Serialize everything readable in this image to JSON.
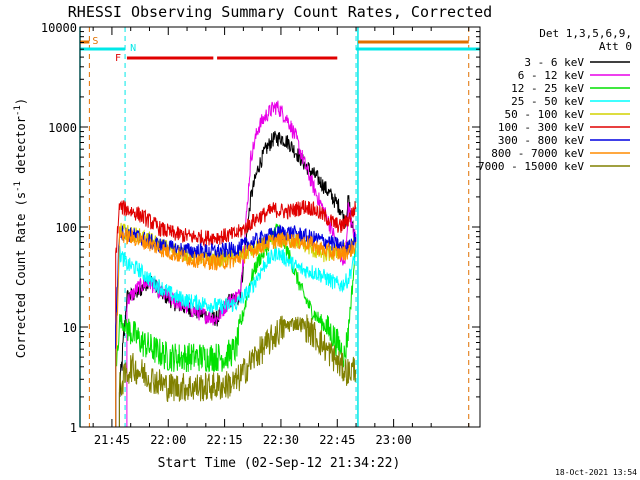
{
  "chart_data": {
    "type": "line",
    "title": "RHESSI Observing Summary Count Rates, Corrected",
    "xlabel": "Start Time (02-Sep-12 21:34:22)",
    "ylabel": "Corrected Count Rate (s⁻¹ detector⁻¹)",
    "ylabel_parts": {
      "main": "Corrected Count Rate (s",
      "exp1": "-1",
      "mid": " detector",
      "exp2": "-1",
      "close": ")"
    },
    "yscale": "log",
    "ylim": [
      1,
      10000
    ],
    "xlim_minutes": [
      36.5,
      143
    ],
    "x_ticks": [
      {
        "label": "21:45",
        "minutes": 45
      },
      {
        "label": "22:00",
        "minutes": 60
      },
      {
        "label": "22:15",
        "minutes": 75
      },
      {
        "label": "22:30",
        "minutes": 90
      },
      {
        "label": "22:45",
        "minutes": 105
      },
      {
        "label": "23:00",
        "minutes": 120
      }
    ],
    "y_ticks": [
      {
        "label": "1",
        "value": 1
      },
      {
        "label": "10",
        "value": 10
      },
      {
        "label": "100",
        "value": 100
      },
      {
        "label": "1000",
        "value": 1000
      },
      {
        "label": "10000",
        "value": 10000
      }
    ],
    "legend": {
      "placement": "right",
      "header": [
        "Det 1,3,5,6,9,",
        "Att 0"
      ]
    },
    "series": [
      {
        "name": "3 - 6 keV",
        "color": "#000000",
        "points": [
          [
            47,
            2
          ],
          [
            49,
            20
          ],
          [
            52,
            22
          ],
          [
            55,
            30
          ],
          [
            58,
            22
          ],
          [
            62,
            17
          ],
          [
            66,
            15
          ],
          [
            70,
            13
          ],
          [
            73,
            12
          ],
          [
            76,
            18
          ],
          [
            79,
            20
          ],
          [
            80,
            40
          ],
          [
            82,
            200
          ],
          [
            84,
            400
          ],
          [
            86,
            600
          ],
          [
            88,
            760
          ],
          [
            90,
            780
          ],
          [
            92,
            700
          ],
          [
            94,
            560
          ],
          [
            96,
            440
          ],
          [
            98,
            360
          ],
          [
            100,
            300
          ],
          [
            102,
            240
          ],
          [
            104,
            190
          ],
          [
            106,
            150
          ],
          [
            107,
            110
          ],
          [
            108,
            190
          ],
          [
            109,
            100
          ],
          [
            110,
            80
          ]
        ]
      },
      {
        "name": "6 - 12 keV",
        "color": "#e800e8",
        "points": [
          [
            49,
            18
          ],
          [
            52,
            25
          ],
          [
            55,
            28
          ],
          [
            58,
            22
          ],
          [
            62,
            18
          ],
          [
            66,
            15
          ],
          [
            70,
            13
          ],
          [
            73,
            12
          ],
          [
            76,
            18
          ],
          [
            79,
            21
          ],
          [
            80,
            50
          ],
          [
            82,
            500
          ],
          [
            84,
            1000
          ],
          [
            86,
            1300
          ],
          [
            88,
            1550
          ],
          [
            89,
            1600
          ],
          [
            90,
            1450
          ],
          [
            92,
            1150
          ],
          [
            94,
            780
          ],
          [
            96,
            460
          ],
          [
            98,
            290
          ],
          [
            100,
            190
          ],
          [
            102,
            130
          ],
          [
            104,
            85
          ],
          [
            106,
            48
          ],
          [
            107,
            40
          ],
          [
            108,
            170
          ],
          [
            109,
            95
          ],
          [
            110,
            75
          ]
        ]
      },
      {
        "name": "12 - 25 keV",
        "color": "#00e000",
        "points": [
          [
            46,
            3
          ],
          [
            47,
            12
          ],
          [
            50,
            9
          ],
          [
            53,
            7
          ],
          [
            56,
            6
          ],
          [
            60,
            5
          ],
          [
            65,
            5
          ],
          [
            70,
            5
          ],
          [
            75,
            5
          ],
          [
            78,
            6
          ],
          [
            80,
            14
          ],
          [
            82,
            30
          ],
          [
            84,
            46
          ],
          [
            86,
            60
          ],
          [
            88,
            85
          ],
          [
            89,
            100
          ],
          [
            90,
            84
          ],
          [
            92,
            54
          ],
          [
            94,
            33
          ],
          [
            96,
            21
          ],
          [
            98,
            15
          ],
          [
            100,
            12
          ],
          [
            102,
            10
          ],
          [
            104,
            8
          ],
          [
            106,
            6
          ],
          [
            107,
            5
          ],
          [
            108,
            10
          ],
          [
            109,
            25
          ],
          [
            110,
            70
          ]
        ]
      },
      {
        "name": "25 - 50 keV",
        "color": "#00ffff",
        "points": [
          [
            46,
            8
          ],
          [
            47,
            55
          ],
          [
            49,
            42
          ],
          [
            52,
            38
          ],
          [
            55,
            30
          ],
          [
            58,
            25
          ],
          [
            62,
            20
          ],
          [
            66,
            18
          ],
          [
            70,
            17
          ],
          [
            74,
            16
          ],
          [
            78,
            17
          ],
          [
            80,
            20
          ],
          [
            82,
            24
          ],
          [
            84,
            33
          ],
          [
            86,
            44
          ],
          [
            88,
            52
          ],
          [
            89,
            56
          ],
          [
            90,
            52
          ],
          [
            92,
            46
          ],
          [
            94,
            40
          ],
          [
            96,
            37
          ],
          [
            98,
            36
          ],
          [
            100,
            34
          ],
          [
            102,
            31
          ],
          [
            104,
            28
          ],
          [
            106,
            26
          ],
          [
            108,
            30
          ],
          [
            110,
            55
          ]
        ]
      },
      {
        "name": "50 - 100 keV",
        "color": "#d2d200",
        "points": [
          [
            46,
            5
          ],
          [
            47,
            95
          ],
          [
            49,
            88
          ],
          [
            52,
            82
          ],
          [
            55,
            75
          ],
          [
            58,
            65
          ],
          [
            62,
            58
          ],
          [
            66,
            52
          ],
          [
            70,
            49
          ],
          [
            74,
            48
          ],
          [
            78,
            50
          ],
          [
            80,
            54
          ],
          [
            82,
            57
          ],
          [
            84,
            62
          ],
          [
            86,
            68
          ],
          [
            88,
            72
          ],
          [
            90,
            74
          ],
          [
            92,
            75
          ],
          [
            94,
            72
          ],
          [
            96,
            68
          ],
          [
            98,
            60
          ],
          [
            100,
            55
          ],
          [
            102,
            52
          ],
          [
            104,
            55
          ],
          [
            106,
            58
          ],
          [
            108,
            60
          ],
          [
            110,
            70
          ]
        ]
      },
      {
        "name": "100 - 300 keV",
        "color": "#e00000",
        "points": [
          [
            46,
            50
          ],
          [
            47,
            160
          ],
          [
            49,
            150
          ],
          [
            52,
            135
          ],
          [
            55,
            115
          ],
          [
            58,
            95
          ],
          [
            62,
            85
          ],
          [
            66,
            80
          ],
          [
            70,
            78
          ],
          [
            74,
            80
          ],
          [
            78,
            85
          ],
          [
            80,
            95
          ],
          [
            82,
            110
          ],
          [
            84,
            125
          ],
          [
            86,
            135
          ],
          [
            88,
            150
          ],
          [
            90,
            145
          ],
          [
            92,
            142
          ],
          [
            94,
            150
          ],
          [
            96,
            160
          ],
          [
            98,
            155
          ],
          [
            100,
            140
          ],
          [
            102,
            125
          ],
          [
            104,
            110
          ],
          [
            106,
            100
          ],
          [
            108,
            120
          ],
          [
            110,
            160
          ]
        ]
      },
      {
        "name": "300 - 800 keV",
        "color": "#0000e0",
        "points": [
          [
            46,
            10
          ],
          [
            47,
            90
          ],
          [
            49,
            85
          ],
          [
            52,
            80
          ],
          [
            55,
            72
          ],
          [
            58,
            65
          ],
          [
            62,
            60
          ],
          [
            66,
            58
          ],
          [
            70,
            57
          ],
          [
            74,
            57
          ],
          [
            78,
            60
          ],
          [
            80,
            65
          ],
          [
            82,
            70
          ],
          [
            84,
            75
          ],
          [
            86,
            80
          ],
          [
            88,
            84
          ],
          [
            90,
            88
          ],
          [
            92,
            88
          ],
          [
            94,
            86
          ],
          [
            96,
            82
          ],
          [
            98,
            78
          ],
          [
            100,
            75
          ],
          [
            102,
            72
          ],
          [
            104,
            68
          ],
          [
            106,
            64
          ],
          [
            108,
            62
          ],
          [
            110,
            80
          ]
        ]
      },
      {
        "name": "800 - 7000 keV",
        "color": "#ff8c00",
        "points": [
          [
            46,
            3
          ],
          [
            47,
            85
          ],
          [
            49,
            80
          ],
          [
            52,
            75
          ],
          [
            55,
            68
          ],
          [
            58,
            60
          ],
          [
            62,
            53
          ],
          [
            66,
            48
          ],
          [
            70,
            45
          ],
          [
            74,
            44
          ],
          [
            78,
            47
          ],
          [
            80,
            52
          ],
          [
            82,
            57
          ],
          [
            84,
            63
          ],
          [
            86,
            68
          ],
          [
            88,
            72
          ],
          [
            90,
            74
          ],
          [
            92,
            74
          ],
          [
            94,
            72
          ],
          [
            96,
            70
          ],
          [
            98,
            68
          ],
          [
            100,
            62
          ],
          [
            102,
            58
          ],
          [
            104,
            55
          ],
          [
            106,
            54
          ],
          [
            108,
            57
          ],
          [
            110,
            65
          ]
        ]
      },
      {
        "name": "7000 - 15000 keV",
        "color": "#808000",
        "points": [
          [
            47,
            2.5
          ],
          [
            50,
            4
          ],
          [
            53,
            3.5
          ],
          [
            56,
            3
          ],
          [
            60,
            2.5
          ],
          [
            65,
            2.5
          ],
          [
            70,
            2.5
          ],
          [
            75,
            2.6
          ],
          [
            78,
            2.8
          ],
          [
            80,
            3.5
          ],
          [
            82,
            4.5
          ],
          [
            84,
            5.5
          ],
          [
            86,
            6.5
          ],
          [
            88,
            8
          ],
          [
            90,
            9.5
          ],
          [
            92,
            10.5
          ],
          [
            94,
            11
          ],
          [
            96,
            10.5
          ],
          [
            98,
            9
          ],
          [
            100,
            7.5
          ],
          [
            102,
            6
          ],
          [
            104,
            5
          ],
          [
            106,
            4
          ],
          [
            108,
            3.5
          ],
          [
            110,
            4
          ]
        ]
      }
    ],
    "annotations": {
      "S": {
        "label": "S",
        "color": "#e07000",
        "minutes": 39
      },
      "N": {
        "label": "N",
        "color": "#00e8e8",
        "minutes": 48.5
      },
      "F": {
        "label": "F",
        "color": "#e00000"
      },
      "flare_bars_minutes": [
        [
          49,
          72
        ],
        [
          73,
          105
        ]
      ],
      "saa_bars_minutes": [
        [
          36.5,
          39
        ],
        [
          110.5,
          140
        ]
      ],
      "night_bars_minutes": [
        [
          36.5,
          48.5
        ],
        [
          110,
          143
        ]
      ],
      "dashed_lines_minutes": [
        {
          "minutes": 39,
          "color": "#e07000"
        },
        {
          "minutes": 48.5,
          "color": "#00e8e8"
        },
        {
          "minutes": 110,
          "color": "#00e8e8"
        },
        {
          "minutes": 140,
          "color": "#e07000"
        }
      ],
      "solid_lines_minutes": [
        {
          "minutes": 36.5,
          "color": "#00e8e8"
        },
        {
          "minutes": 110.5,
          "color": "#00e8e8"
        }
      ]
    }
  },
  "footer": {
    "timestamp": "18-Oct-2021 13:54"
  }
}
